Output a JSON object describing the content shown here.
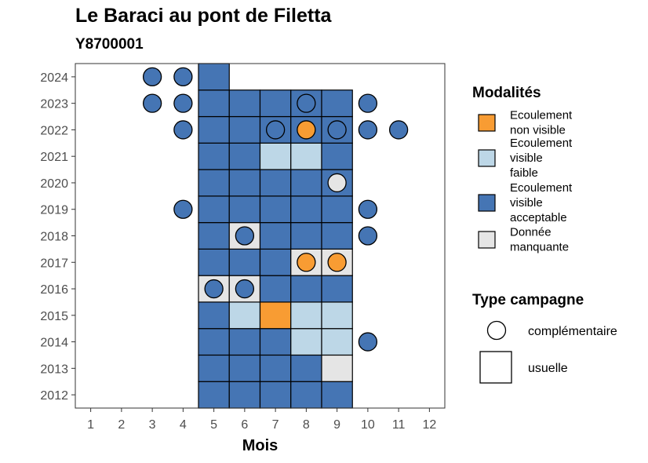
{
  "title": "Le Baraci au pont de Filetta",
  "subtitle": "Y8700001",
  "chart_data": {
    "type": "heatmap",
    "xlabel": "Mois",
    "ylabel": "",
    "x_ticks": [
      1,
      2,
      3,
      4,
      5,
      6,
      7,
      8,
      9,
      10,
      11,
      12
    ],
    "y_ticks": [
      2012,
      2013,
      2014,
      2015,
      2016,
      2017,
      2018,
      2019,
      2020,
      2021,
      2022,
      2023,
      2024
    ],
    "xlim": [
      0.5,
      12.5
    ],
    "ylim": [
      2011.5,
      2024.5
    ],
    "colors": {
      "Ecoulement non visible": "#F89C33",
      "Ecoulement visible faible": "#BDD7E7",
      "Ecoulement visible acceptable": "#4575B4",
      "Donnée manquante": "#E5E5E5"
    },
    "usuelle": [
      {
        "year": 2012,
        "month": 5,
        "value": "Ecoulement visible acceptable"
      },
      {
        "year": 2012,
        "month": 6,
        "value": "Ecoulement visible acceptable"
      },
      {
        "year": 2012,
        "month": 7,
        "value": "Ecoulement visible acceptable"
      },
      {
        "year": 2012,
        "month": 8,
        "value": "Ecoulement visible acceptable"
      },
      {
        "year": 2012,
        "month": 9,
        "value": "Ecoulement visible acceptable"
      },
      {
        "year": 2013,
        "month": 5,
        "value": "Ecoulement visible acceptable"
      },
      {
        "year": 2013,
        "month": 6,
        "value": "Ecoulement visible acceptable"
      },
      {
        "year": 2013,
        "month": 7,
        "value": "Ecoulement visible acceptable"
      },
      {
        "year": 2013,
        "month": 8,
        "value": "Ecoulement visible acceptable"
      },
      {
        "year": 2013,
        "month": 9,
        "value": "Donnée manquante"
      },
      {
        "year": 2014,
        "month": 5,
        "value": "Ecoulement visible acceptable"
      },
      {
        "year": 2014,
        "month": 6,
        "value": "Ecoulement visible acceptable"
      },
      {
        "year": 2014,
        "month": 7,
        "value": "Ecoulement visible acceptable"
      },
      {
        "year": 2014,
        "month": 8,
        "value": "Ecoulement visible faible"
      },
      {
        "year": 2014,
        "month": 9,
        "value": "Ecoulement visible faible"
      },
      {
        "year": 2015,
        "month": 5,
        "value": "Ecoulement visible acceptable"
      },
      {
        "year": 2015,
        "month": 6,
        "value": "Ecoulement visible faible"
      },
      {
        "year": 2015,
        "month": 7,
        "value": "Ecoulement non visible"
      },
      {
        "year": 2015,
        "month": 8,
        "value": "Ecoulement visible faible"
      },
      {
        "year": 2015,
        "month": 9,
        "value": "Ecoulement visible faible"
      },
      {
        "year": 2016,
        "month": 5,
        "value": "Donnée manquante"
      },
      {
        "year": 2016,
        "month": 6,
        "value": "Donnée manquante"
      },
      {
        "year": 2016,
        "month": 7,
        "value": "Ecoulement visible acceptable"
      },
      {
        "year": 2016,
        "month": 8,
        "value": "Ecoulement visible acceptable"
      },
      {
        "year": 2016,
        "month": 9,
        "value": "Ecoulement visible acceptable"
      },
      {
        "year": 2017,
        "month": 5,
        "value": "Ecoulement visible acceptable"
      },
      {
        "year": 2017,
        "month": 6,
        "value": "Ecoulement visible acceptable"
      },
      {
        "year": 2017,
        "month": 7,
        "value": "Ecoulement visible acceptable"
      },
      {
        "year": 2017,
        "month": 8,
        "value": "Donnée manquante"
      },
      {
        "year": 2017,
        "month": 9,
        "value": "Donnée manquante"
      },
      {
        "year": 2018,
        "month": 5,
        "value": "Ecoulement visible acceptable"
      },
      {
        "year": 2018,
        "month": 6,
        "value": "Donnée manquante"
      },
      {
        "year": 2018,
        "month": 7,
        "value": "Ecoulement visible acceptable"
      },
      {
        "year": 2018,
        "month": 8,
        "value": "Ecoulement visible acceptable"
      },
      {
        "year": 2018,
        "month": 9,
        "value": "Ecoulement visible acceptable"
      },
      {
        "year": 2019,
        "month": 5,
        "value": "Ecoulement visible acceptable"
      },
      {
        "year": 2019,
        "month": 6,
        "value": "Ecoulement visible acceptable"
      },
      {
        "year": 2019,
        "month": 7,
        "value": "Ecoulement visible acceptable"
      },
      {
        "year": 2019,
        "month": 8,
        "value": "Ecoulement visible acceptable"
      },
      {
        "year": 2019,
        "month": 9,
        "value": "Ecoulement visible acceptable"
      },
      {
        "year": 2020,
        "month": 5,
        "value": "Ecoulement visible acceptable"
      },
      {
        "year": 2020,
        "month": 6,
        "value": "Ecoulement visible acceptable"
      },
      {
        "year": 2020,
        "month": 7,
        "value": "Ecoulement visible acceptable"
      },
      {
        "year": 2020,
        "month": 8,
        "value": "Ecoulement visible acceptable"
      },
      {
        "year": 2020,
        "month": 9,
        "value": "Ecoulement visible acceptable"
      },
      {
        "year": 2021,
        "month": 5,
        "value": "Ecoulement visible acceptable"
      },
      {
        "year": 2021,
        "month": 6,
        "value": "Ecoulement visible acceptable"
      },
      {
        "year": 2021,
        "month": 7,
        "value": "Ecoulement visible faible"
      },
      {
        "year": 2021,
        "month": 8,
        "value": "Ecoulement visible faible"
      },
      {
        "year": 2021,
        "month": 9,
        "value": "Ecoulement visible acceptable"
      },
      {
        "year": 2022,
        "month": 5,
        "value": "Ecoulement visible acceptable"
      },
      {
        "year": 2022,
        "month": 6,
        "value": "Ecoulement visible acceptable"
      },
      {
        "year": 2022,
        "month": 7,
        "value": "Ecoulement visible acceptable"
      },
      {
        "year": 2022,
        "month": 8,
        "value": "Ecoulement visible acceptable"
      },
      {
        "year": 2022,
        "month": 9,
        "value": "Ecoulement visible acceptable"
      },
      {
        "year": 2023,
        "month": 5,
        "value": "Ecoulement visible acceptable"
      },
      {
        "year": 2023,
        "month": 6,
        "value": "Ecoulement visible acceptable"
      },
      {
        "year": 2023,
        "month": 7,
        "value": "Ecoulement visible acceptable"
      },
      {
        "year": 2023,
        "month": 8,
        "value": "Ecoulement visible acceptable"
      },
      {
        "year": 2023,
        "month": 9,
        "value": "Ecoulement visible acceptable"
      },
      {
        "year": 2024,
        "month": 5,
        "value": "Ecoulement visible acceptable"
      }
    ],
    "complementaire": [
      {
        "year": 2014,
        "month": 10,
        "value": "Ecoulement visible acceptable"
      },
      {
        "year": 2016,
        "month": 5,
        "value": "Ecoulement visible acceptable"
      },
      {
        "year": 2016,
        "month": 6,
        "value": "Ecoulement visible acceptable"
      },
      {
        "year": 2017,
        "month": 8,
        "value": "Ecoulement non visible"
      },
      {
        "year": 2017,
        "month": 9,
        "value": "Ecoulement non visible"
      },
      {
        "year": 2018,
        "month": 6,
        "value": "Ecoulement visible acceptable"
      },
      {
        "year": 2018,
        "month": 10,
        "value": "Ecoulement visible acceptable"
      },
      {
        "year": 2019,
        "month": 4,
        "value": "Ecoulement visible acceptable"
      },
      {
        "year": 2019,
        "month": 10,
        "value": "Ecoulement visible acceptable"
      },
      {
        "year": 2020,
        "month": 9,
        "value": "Donnée manquante"
      },
      {
        "year": 2022,
        "month": 4,
        "value": "Ecoulement visible acceptable"
      },
      {
        "year": 2022,
        "month": 7,
        "value": "Ecoulement visible acceptable"
      },
      {
        "year": 2022,
        "month": 8,
        "value": "Ecoulement non visible"
      },
      {
        "year": 2022,
        "month": 9,
        "value": "Ecoulement visible acceptable"
      },
      {
        "year": 2022,
        "month": 10,
        "value": "Ecoulement visible acceptable"
      },
      {
        "year": 2022,
        "month": 11,
        "value": "Ecoulement visible acceptable"
      },
      {
        "year": 2023,
        "month": 3,
        "value": "Ecoulement visible acceptable"
      },
      {
        "year": 2023,
        "month": 4,
        "value": "Ecoulement visible acceptable"
      },
      {
        "year": 2023,
        "month": 8,
        "value": "Ecoulement visible acceptable"
      },
      {
        "year": 2023,
        "month": 10,
        "value": "Ecoulement visible acceptable"
      },
      {
        "year": 2024,
        "month": 3,
        "value": "Ecoulement visible acceptable"
      },
      {
        "year": 2024,
        "month": 4,
        "value": "Ecoulement visible acceptable"
      }
    ],
    "legend_modalites": {
      "title": "Modalités",
      "items": [
        {
          "key": "Ecoulement non visible",
          "lines": [
            "Ecoulement",
            "non visible"
          ]
        },
        {
          "key": "Ecoulement visible faible",
          "lines": [
            "Ecoulement",
            "visible",
            "faible"
          ]
        },
        {
          "key": "Ecoulement visible acceptable",
          "lines": [
            "Ecoulement",
            "visible",
            "acceptable"
          ]
        },
        {
          "key": "Donnée manquante",
          "lines": [
            "Donnée",
            "manquante"
          ]
        }
      ]
    },
    "legend_type": {
      "title": "Type campagne",
      "items": [
        {
          "shape": "circle",
          "label": "complémentaire"
        },
        {
          "shape": "square",
          "label": "usuelle"
        }
      ]
    },
    "legend_placement": "right",
    "grid": false
  }
}
